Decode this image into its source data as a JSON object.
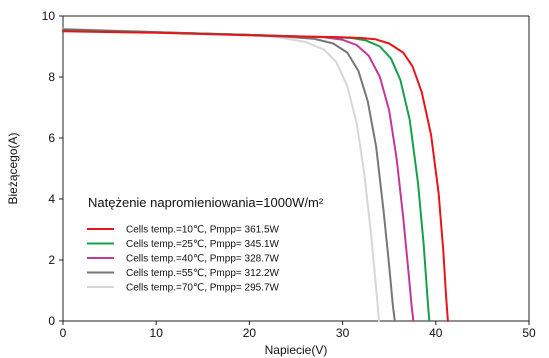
{
  "chart_data": {
    "type": "line",
    "xlabel": "Napiecie(V)",
    "ylabel": "Bieżącego(A)",
    "xlim": [
      0,
      50
    ],
    "ylim": [
      0,
      10
    ],
    "x_ticks": [
      "0",
      "10",
      "20",
      "30",
      "40",
      "50"
    ],
    "y_ticks": [
      "0",
      "2",
      "4",
      "6",
      "8",
      "10"
    ],
    "grid": false,
    "legend": {
      "title": "Natężenie napromieniowania=1000W/m²",
      "placement": "bottom-left"
    },
    "series": [
      {
        "name": "Cells temp.=10℃,  Pmpp= 361.5W",
        "color": "#e8141b",
        "x": [
          0,
          10,
          20,
          25,
          30,
          32,
          33.5,
          35,
          36.5,
          37.5,
          38.5,
          39.5,
          40.3,
          40.8,
          41.1,
          41.3
        ],
        "y": [
          9.5,
          9.45,
          9.37,
          9.33,
          9.3,
          9.28,
          9.24,
          9.1,
          8.8,
          8.35,
          7.5,
          6.1,
          4.2,
          2.3,
          0.8,
          0
        ]
      },
      {
        "name": "Cells temp.=25℃,  Pmpp= 345.1W",
        "color": "#16a04a",
        "x": [
          0,
          10,
          20,
          25,
          29,
          31,
          32.5,
          34,
          35.2,
          36.2,
          37.2,
          38.1,
          38.7,
          39.1,
          39.3
        ],
        "y": [
          9.53,
          9.46,
          9.38,
          9.33,
          9.3,
          9.28,
          9.2,
          9.0,
          8.6,
          7.9,
          6.6,
          4.5,
          2.5,
          0.8,
          0
        ]
      },
      {
        "name": "Cells temp.=40℃,  Pmpp= 328.7W",
        "color": "#c2379b",
        "x": [
          0,
          10,
          20,
          25,
          28,
          30,
          31.5,
          32.8,
          34,
          35,
          35.8,
          36.5,
          37.1,
          37.4,
          37.6
        ],
        "y": [
          9.55,
          9.47,
          9.38,
          9.33,
          9.3,
          9.22,
          9.05,
          8.7,
          8.0,
          6.9,
          5.3,
          3.4,
          1.5,
          0.5,
          0
        ]
      },
      {
        "name": "Cells temp.=55℃,  Pmpp= 312.2W",
        "color": "#777777",
        "x": [
          0,
          10,
          20,
          24,
          27,
          29,
          30.5,
          31.7,
          32.7,
          33.6,
          34.4,
          35,
          35.4,
          35.6
        ],
        "y": [
          9.56,
          9.47,
          9.38,
          9.32,
          9.25,
          9.1,
          8.8,
          8.2,
          7.2,
          5.7,
          3.6,
          1.8,
          0.5,
          0
        ]
      },
      {
        "name": "Cells temp.=70℃,  Pmpp= 295.7W",
        "color": "#d7d7d7",
        "x": [
          0,
          10,
          20,
          23,
          26,
          28,
          29.3,
          30.5,
          31.5,
          32.3,
          33,
          33.5,
          33.8,
          33.9
        ],
        "y": [
          9.58,
          9.48,
          9.36,
          9.3,
          9.15,
          8.9,
          8.5,
          7.7,
          6.5,
          4.9,
          3.0,
          1.4,
          0.4,
          0
        ]
      }
    ]
  }
}
